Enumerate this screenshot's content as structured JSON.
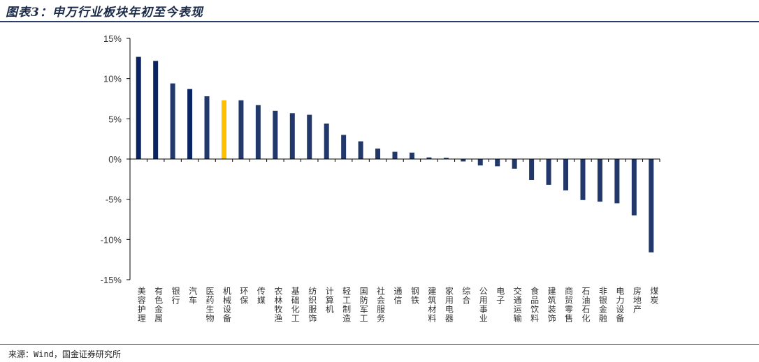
{
  "header": {
    "title": "图表3：申万行业板块年初至今表现"
  },
  "footer": {
    "source": "来源：Wind，国金证券研究所"
  },
  "chart_data": {
    "type": "bar",
    "title": "",
    "xlabel": "",
    "ylabel": "",
    "ylim": [
      -15,
      15
    ],
    "yticks": [
      15,
      10,
      5,
      0,
      -5,
      -10,
      -15
    ],
    "ytick_labels": [
      "15%",
      "10%",
      "5%",
      "0%",
      "-5%",
      "-10%",
      "-15%"
    ],
    "grid": false,
    "categories": [
      "美容护理",
      "有色金属",
      "银行",
      "汽车",
      "医药生物",
      "机械设备",
      "环保",
      "传媒",
      "农林牧渔",
      "基础化工",
      "纺织服饰",
      "计算机",
      "轻工制造",
      "国防军工",
      "社会服务",
      "通信",
      "钢铁",
      "建筑材料",
      "家用电器",
      "综合",
      "公用事业",
      "电子",
      "交通运输",
      "食品饮料",
      "建筑装饰",
      "商贸零售",
      "石油石化",
      "非银金融",
      "电力设备",
      "房地产",
      "煤炭"
    ],
    "values": [
      12.7,
      12.2,
      9.4,
      8.7,
      7.8,
      7.3,
      7.3,
      6.7,
      6.0,
      5.7,
      5.5,
      4.4,
      3.0,
      2.2,
      1.3,
      0.9,
      0.8,
      0.2,
      0.15,
      -0.3,
      -0.8,
      -0.9,
      -1.2,
      -2.6,
      -3.2,
      -3.9,
      -5.1,
      -5.3,
      -5.5,
      -7.0,
      -11.6
    ],
    "colors": {
      "highlight": "#FFC000",
      "dark": "#0A2463",
      "default": "#22386A"
    },
    "bar_colors": [
      "#0A2463",
      "#0A2463",
      "#22386A",
      "#0A2463",
      "#22386A",
      "#FFC000",
      "#22386A",
      "#22386A",
      "#22386A",
      "#22386A",
      "#22386A",
      "#22386A",
      "#22386A",
      "#22386A",
      "#22386A",
      "#22386A",
      "#22386A",
      "#22386A",
      "#22386A",
      "#22386A",
      "#22386A",
      "#22386A",
      "#22386A",
      "#22386A",
      "#22386A",
      "#22386A",
      "#22386A",
      "#22386A",
      "#22386A",
      "#22386A",
      "#22386A"
    ]
  }
}
